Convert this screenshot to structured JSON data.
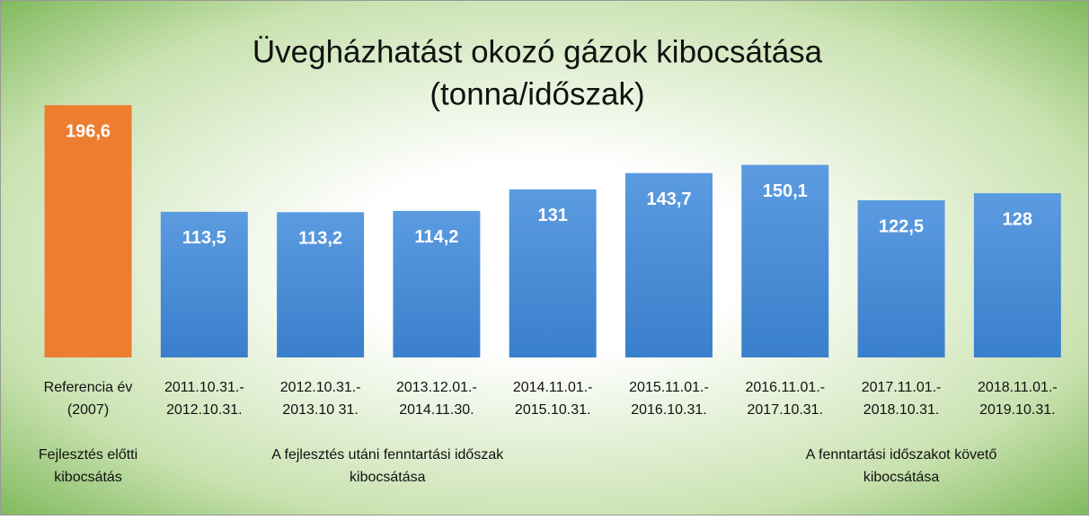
{
  "chart_data": {
    "type": "bar",
    "title": [
      "Üvegházhatást okozó gázok kibocsátása",
      "(tonna/időszak)"
    ],
    "categories": [
      [
        "Referencia év",
        "(2007)"
      ],
      [
        "2011.10.31.-",
        "2012.10.31."
      ],
      [
        "2012.10.31.-",
        "2013.10 31."
      ],
      [
        "2013.12.01.-",
        "2014.11.30."
      ],
      [
        "2014.11.01.-",
        "2015.10.31."
      ],
      [
        "2015.11.01.-",
        "2016.10.31."
      ],
      [
        "2016.11.01.-",
        "2017.10.31."
      ],
      [
        "2017.11.01.-",
        "2018.10.31."
      ],
      [
        "2018.11.01.-",
        "2019.10.31."
      ]
    ],
    "values": [
      196.6,
      113.5,
      113.2,
      114.2,
      131,
      143.7,
      150.1,
      122.5,
      128
    ],
    "value_labels": [
      "196,6",
      "113,5",
      "113,2",
      "114,2",
      "131",
      "143,7",
      "150,1",
      "122,5",
      "128"
    ],
    "colors": [
      "#ed7d31",
      "#4a8fd8",
      "#4a8fd8",
      "#4a8fd8",
      "#4a8fd8",
      "#4a8fd8",
      "#4a8fd8",
      "#4a8fd8",
      "#4a8fd8"
    ],
    "ylim": [
      0,
      210
    ],
    "annotations": [
      [
        "Fejlesztés előtti",
        "kibocsátás"
      ],
      [
        "A fejlesztés utáni fenntartási időszak",
        "kibocsátása"
      ],
      [
        "A fenntartási időszakot követő",
        "kibocsátása"
      ]
    ]
  }
}
